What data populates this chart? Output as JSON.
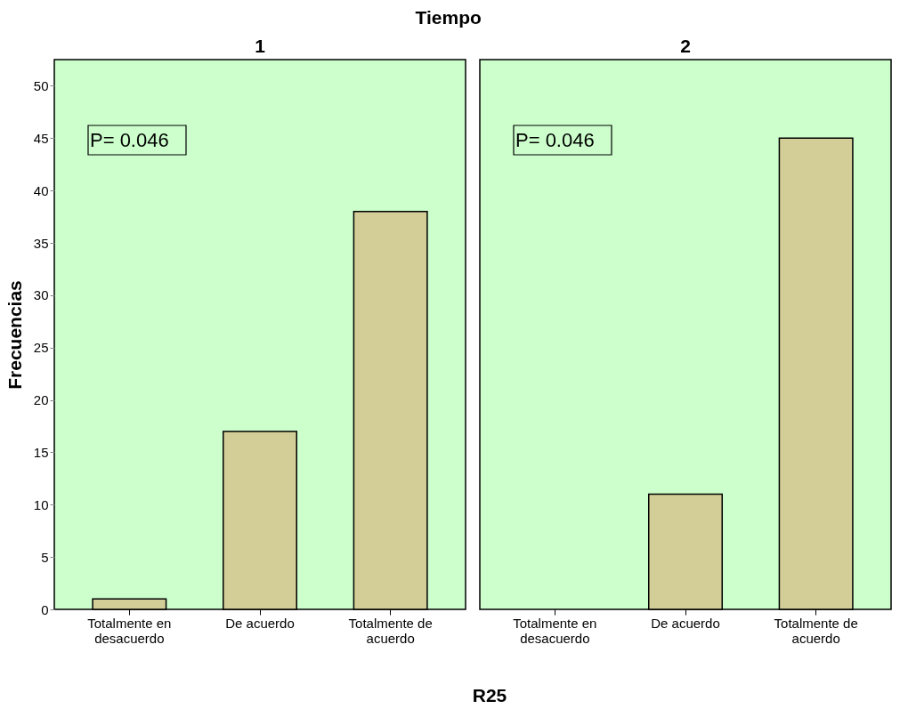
{
  "chart_data": [
    {
      "type": "bar",
      "title": "Tiempo",
      "subtitle": "1",
      "xlabel": "R25",
      "ylabel": "Frecuencias",
      "categories": [
        "Totalmente en desacuerdo",
        "De acuerdo",
        "Totalmente de acuerdo"
      ],
      "values": [
        1,
        17,
        38
      ],
      "color": "#d3ce97",
      "ylim": [
        0,
        52.5
      ],
      "yticks": [
        0,
        5,
        10,
        15,
        20,
        25,
        30,
        35,
        40,
        45,
        50
      ],
      "annotations": [
        "P= 0.046"
      ]
    },
    {
      "type": "bar",
      "subtitle": "2",
      "categories": [
        "Totalmente en desacuerdo",
        "De acuerdo",
        "Totalmente de acuerdo"
      ],
      "values": [
        0,
        11,
        45
      ],
      "color": "#d3ce97",
      "ylim": [
        0,
        52.5
      ],
      "yticks": [
        0,
        5,
        10,
        15,
        20,
        25,
        30,
        35,
        40,
        45,
        50
      ],
      "tick_labels": "x",
      "annotations": [
        "P= 0.046"
      ]
    }
  ]
}
